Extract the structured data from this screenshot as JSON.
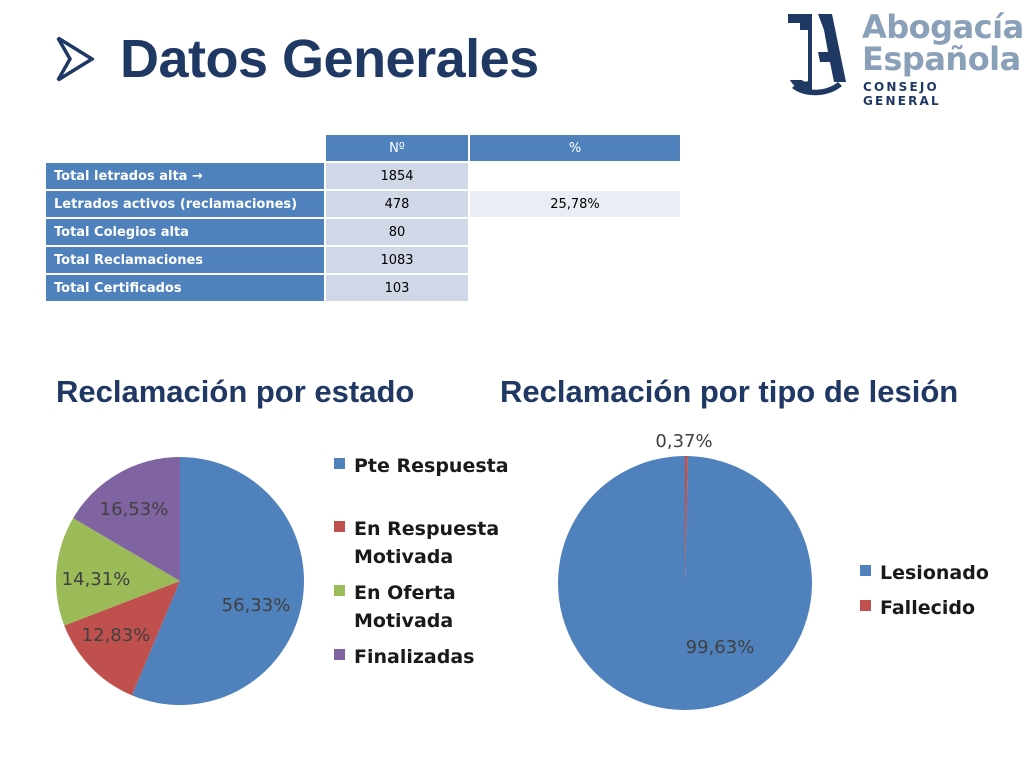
{
  "header": {
    "title": "Datos Generales"
  },
  "logo": {
    "line1": "Abogacía",
    "line2": "Española",
    "line3": "CONSEJO GENERAL"
  },
  "table": {
    "headers": [
      "",
      "Nº",
      "%"
    ],
    "rows": [
      {
        "label": "Total letrados alta →",
        "n": "1854",
        "pct": ""
      },
      {
        "label": "Letrados activos (reclamaciones)",
        "n": "478",
        "pct": "25,78%"
      },
      {
        "label": "Total Colegios alta",
        "n": "80",
        "pct": ""
      },
      {
        "label": "Total Reclamaciones",
        "n": "1083",
        "pct": ""
      },
      {
        "label": "Total Certificados",
        "n": "103",
        "pct": ""
      }
    ]
  },
  "chart_data": [
    {
      "type": "pie",
      "title": "Reclamación por estado",
      "categories": [
        "Pte Respuesta",
        "En Respuesta Motivada",
        "En Oferta Motivada",
        "Finalizadas"
      ],
      "values": [
        56.33,
        12.83,
        14.31,
        16.53
      ],
      "labels": [
        "56,33%",
        "12,83%",
        "14,31%",
        "16,53%"
      ],
      "colors": [
        "#4f81bd",
        "#c0504d",
        "#9bbb59",
        "#8064a2"
      ],
      "legend_lines": [
        [
          "Pte Respuesta"
        ],
        [
          "En Respuesta",
          "Motivada"
        ],
        [
          "En Oferta",
          "Motivada"
        ],
        [
          "Finalizadas"
        ]
      ],
      "legend": "right"
    },
    {
      "type": "pie",
      "title": "Reclamación por tipo de lesión",
      "categories": [
        "Lesionado",
        "Fallecido"
      ],
      "values": [
        99.63,
        0.37
      ],
      "labels": [
        "99,63%",
        "0,37%"
      ],
      "colors": [
        "#4f81bd",
        "#c0504d"
      ],
      "legend_lines": [
        [
          "Lesionado"
        ],
        [
          "Fallecido"
        ]
      ],
      "legend": "right"
    }
  ]
}
